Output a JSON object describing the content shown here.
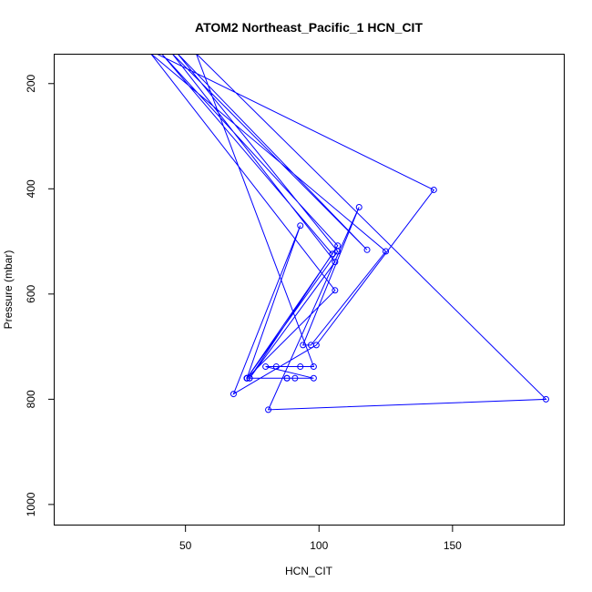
{
  "chart_data": {
    "type": "line",
    "title": "ATOM2 Northeast_Pacific_1 HCN_CIT",
    "xlabel": "HCN_CIT",
    "ylabel": "Pressure (mbar)",
    "xlim": [
      1,
      192
    ],
    "ylim": [
      1040,
      145
    ],
    "y_reversed": true,
    "x_ticks": [
      50,
      100,
      150
    ],
    "y_ticks": [
      200,
      400,
      600,
      800,
      1000
    ],
    "grid": false,
    "series_color": "#0000ff",
    "series": [
      {
        "points": [
          {
            "x": 39,
            "y": 143
          },
          {
            "x": 143,
            "y": 402
          },
          {
            "x": 99,
            "y": 697
          },
          {
            "x": 68,
            "y": 790
          },
          {
            "x": 93,
            "y": 470
          },
          {
            "x": 73,
            "y": 760
          },
          {
            "x": 107,
            "y": 519
          },
          {
            "x": 47,
            "y": 143
          },
          {
            "x": 118,
            "y": 516
          },
          {
            "x": 45,
            "y": 143
          },
          {
            "x": 106,
            "y": 539
          },
          {
            "x": 74,
            "y": 760
          },
          {
            "x": 107,
            "y": 508
          },
          {
            "x": 41,
            "y": 143
          },
          {
            "x": 105,
            "y": 524
          },
          {
            "x": 73,
            "y": 760
          },
          {
            "x": 106,
            "y": 593
          },
          {
            "x": 37,
            "y": 143
          },
          {
            "x": 125,
            "y": 519
          },
          {
            "x": 97,
            "y": 697
          },
          {
            "x": 94,
            "y": 697
          },
          {
            "x": 115,
            "y": 435
          },
          {
            "x": 81,
            "y": 820
          },
          {
            "x": 185,
            "y": 800
          },
          {
            "x": 54,
            "y": 143
          },
          {
            "x": 98,
            "y": 738
          },
          {
            "x": 84,
            "y": 738
          },
          {
            "x": 93,
            "y": 738
          },
          {
            "x": 80,
            "y": 738
          },
          {
            "x": 98,
            "y": 760
          },
          {
            "x": 91,
            "y": 760
          },
          {
            "x": 88,
            "y": 760
          },
          {
            "x": 73,
            "y": 760
          },
          {
            "x": 105,
            "y": 524
          },
          {
            "x": 73,
            "y": 760
          },
          {
            "x": 74,
            "y": 760
          },
          {
            "x": 88,
            "y": 760
          }
        ]
      }
    ]
  }
}
